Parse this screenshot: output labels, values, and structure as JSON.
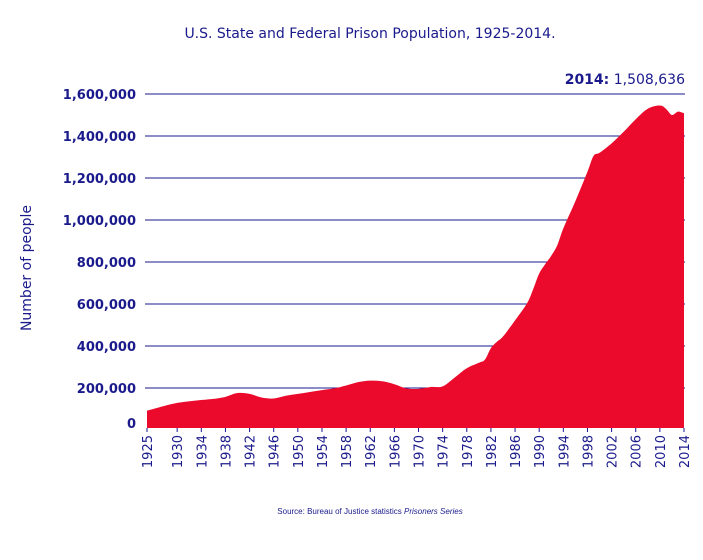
{
  "chart_data": {
    "type": "area",
    "title": "U.S. State and Federal Prison Population, 1925-2014.",
    "ylabel": "Number of people",
    "xlabel": "",
    "source_prefix": "Source: Bureau of Justice statistics ",
    "source_italic": "Prisoners Series",
    "annotation": {
      "year_label": "2014:",
      "value_label": "1,508,636"
    },
    "ylim": [
      0,
      1600000
    ],
    "xlim": [
      1925,
      2014
    ],
    "grid": true,
    "fill_color": "#ec0a2c",
    "grid_color": "#1a1a8c",
    "text_color": "#1a1a8c",
    "yticks": [
      0,
      200000,
      400000,
      600000,
      800000,
      1000000,
      1200000,
      1400000,
      1600000
    ],
    "ytick_labels": [
      "0",
      "200,000",
      "400,000",
      "600,000",
      "800,000",
      "1,000,000",
      "1,200,000",
      "1,400,000",
      "1,600,000"
    ],
    "xticks": [
      1925,
      1930,
      1934,
      1938,
      1942,
      1946,
      1950,
      1954,
      1958,
      1962,
      1966,
      1970,
      1974,
      1978,
      1982,
      1986,
      1990,
      1994,
      1998,
      2002,
      2006,
      2010,
      2014
    ],
    "x": [
      1925,
      1927,
      1930,
      1933,
      1936,
      1938,
      1940,
      1942,
      1944,
      1946,
      1948,
      1950,
      1952,
      1954,
      1956,
      1958,
      1960,
      1962,
      1964,
      1966,
      1968,
      1970,
      1972,
      1974,
      1976,
      1978,
      1980,
      1981,
      1982,
      1983,
      1984,
      1986,
      1988,
      1989,
      1990,
      1991,
      1992,
      1993,
      1994,
      1996,
      1998,
      1999,
      2000,
      2002,
      2004,
      2006,
      2008,
      2010,
      2011,
      2012,
      2013,
      2014
    ],
    "values": [
      92000,
      108000,
      129000,
      140000,
      148000,
      158000,
      176000,
      172000,
      155000,
      150000,
      163000,
      172000,
      181000,
      190000,
      198000,
      212000,
      228000,
      235000,
      232000,
      218000,
      198000,
      196000,
      205000,
      208000,
      250000,
      294000,
      320000,
      335000,
      390000,
      420000,
      445000,
      522000,
      604000,
      670000,
      745000,
      790000,
      830000,
      880000,
      960000,
      1090000,
      1230000,
      1305000,
      1320000,
      1365000,
      1420000,
      1480000,
      1530000,
      1545000,
      1530000,
      1500000,
      1516000,
      1508636
    ]
  }
}
